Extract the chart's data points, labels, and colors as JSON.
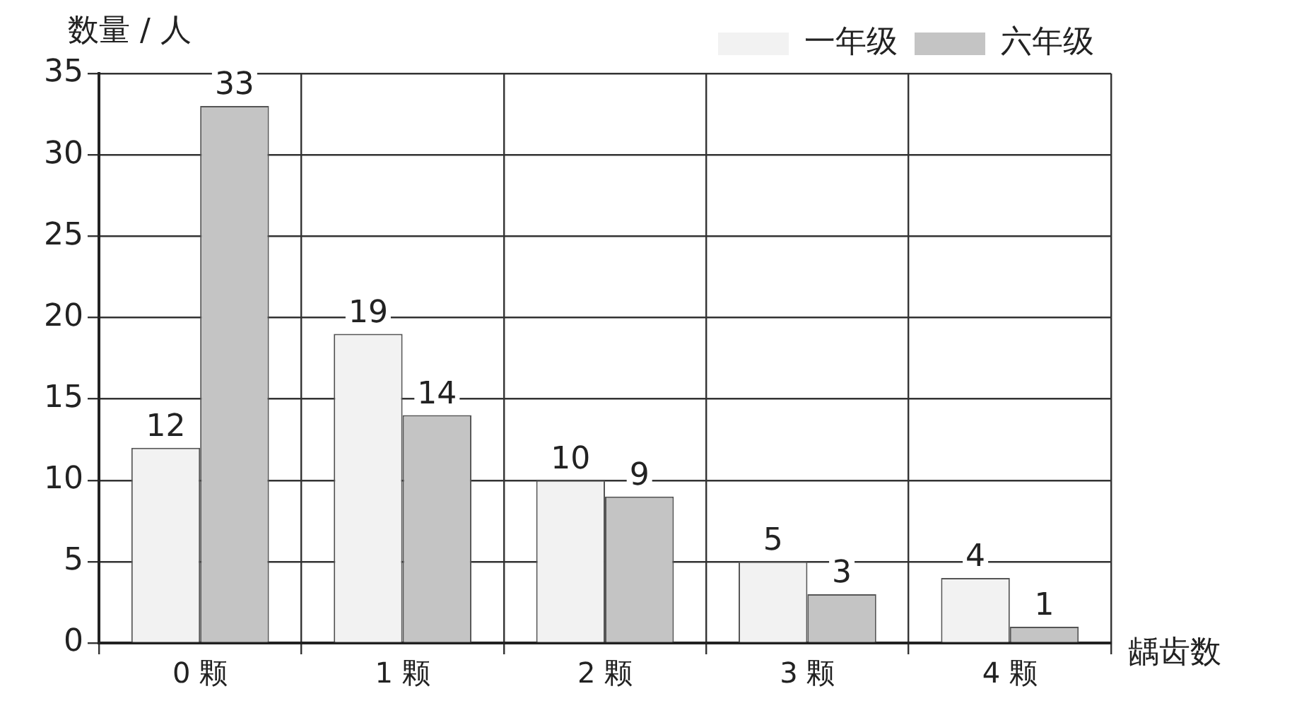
{
  "chart_data": {
    "type": "bar",
    "xlabel": "龋齿数",
    "ylabel": "数量 / 人",
    "categories": [
      "0 颗",
      "1 颗",
      "2 颗",
      "3 颗",
      "4 颗"
    ],
    "series": [
      {
        "name": "一年级",
        "color": "#f2f2f2",
        "values": [
          12,
          19,
          10,
          5,
          4
        ]
      },
      {
        "name": "六年级",
        "color": "#c4c4c4",
        "values": [
          33,
          14,
          9,
          3,
          1
        ]
      }
    ],
    "ylim": [
      0,
      35
    ],
    "yticks": [
      0,
      5,
      10,
      15,
      20,
      25,
      30,
      35
    ],
    "grid": true,
    "legend": "top right",
    "data_labels": true
  }
}
